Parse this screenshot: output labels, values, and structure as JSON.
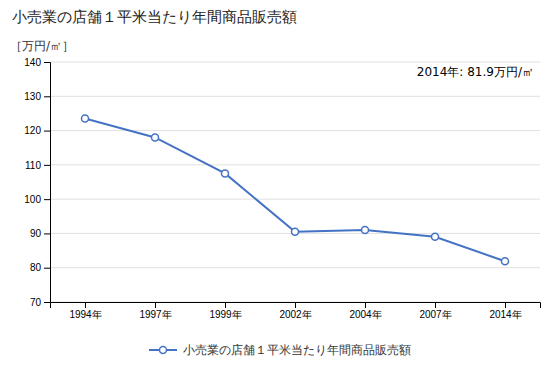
{
  "chart_data": {
    "type": "line",
    "title": "小売業の店舗１平米当たり年間商品販売額",
    "ylabel": "［万円/㎡］",
    "annotation": "2014年: 81.9万円/㎡",
    "categories": [
      "1994年",
      "1997年",
      "1999年",
      "2002年",
      "2004年",
      "2007年",
      "2014年"
    ],
    "series": [
      {
        "name": "小売業の店舗１平米当たり年間商品販売額",
        "color": "#4472C4",
        "marker": "circle",
        "values": [
          123.5,
          118.0,
          107.5,
          90.5,
          91.0,
          89.0,
          81.9
        ]
      }
    ],
    "ylim": [
      70,
      140
    ],
    "yticks": [
      70,
      80,
      90,
      100,
      110,
      120,
      130,
      140
    ],
    "grid": true,
    "legend": "bottom"
  }
}
